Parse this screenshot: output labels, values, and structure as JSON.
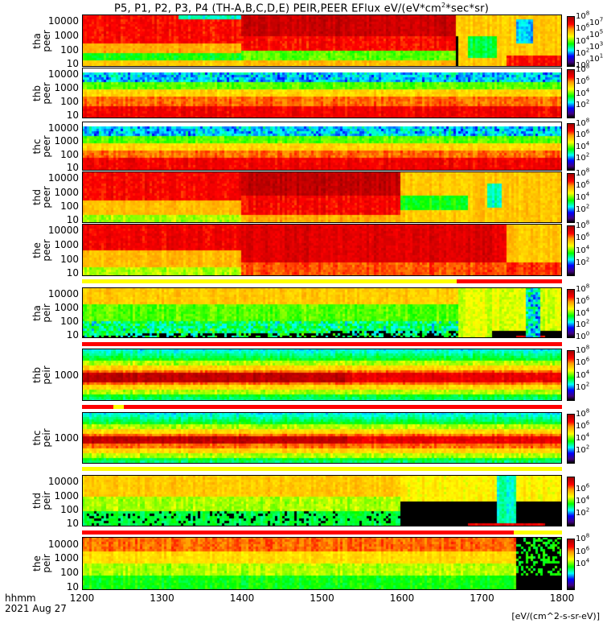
{
  "title": {
    "main": "P5, P1, P2, P3, P4 (TH-A,B,C,D,E) PEIR,PEER EFlux eV/(eV*cm",
    "sup": "2",
    "tail": "*sec*sr)"
  },
  "colorbar_unit": "[eV/(cm^2-s-sr-eV)]",
  "chart_data": {
    "type": "heatmap",
    "title": "P5, P1, P2, P3, P4 (TH-A,B,C,D,E) PEIR,PEER EFlux eV/(eV*cm^2*sec*sr)",
    "xlabel": [
      "hhmm",
      "2021 Aug 27"
    ],
    "xlim": [
      1200,
      1800
    ],
    "xticks": [
      "1200",
      "1300",
      "1400",
      "1500",
      "1600",
      "1700",
      "1800"
    ],
    "ylabel_units": "eV",
    "zlabel": "[eV/(cm^2-s-sr-eV)]",
    "panels": [
      {
        "id": "tha_peer",
        "label": [
          "tha",
          "peer"
        ],
        "yticks": [
          "10000",
          "1000",
          "100",
          "10"
        ],
        "ylim": [
          6,
          30000
        ],
        "zticks_exp": [
          "8",
          "7",
          "6",
          "5",
          "4",
          "3",
          "2",
          "1",
          "0"
        ],
        "zlim_exp": [
          0,
          8
        ]
      },
      {
        "id": "thb_peer",
        "label": [
          "thb",
          "peer"
        ],
        "yticks": [
          "10000",
          "1000",
          "100",
          "10"
        ],
        "ylim": [
          6,
          30000
        ],
        "zticks_exp": [
          "8",
          "6",
          "4",
          "2"
        ],
        "zlim_exp": [
          0,
          8
        ]
      },
      {
        "id": "thc_peer",
        "label": [
          "thc",
          "peer"
        ],
        "yticks": [
          "10000",
          "1000",
          "100",
          "10"
        ],
        "ylim": [
          6,
          30000
        ],
        "zticks_exp": [
          "8",
          "6",
          "4",
          "2"
        ],
        "zlim_exp": [
          0,
          8
        ]
      },
      {
        "id": "thd_peer",
        "label": [
          "thd",
          "peer"
        ],
        "yticks": [
          "10000",
          "1000",
          "100",
          "10"
        ],
        "ylim": [
          6,
          30000
        ],
        "zticks_exp": [
          "8",
          "6",
          "4",
          "2"
        ],
        "zlim_exp": [
          0,
          8
        ]
      },
      {
        "id": "the_peer",
        "label": [
          "the",
          "peer"
        ],
        "yticks": [
          "10000",
          "1000",
          "100",
          "10"
        ],
        "ylim": [
          6,
          30000
        ],
        "zticks_exp": [
          "8",
          "6",
          "4",
          "2"
        ],
        "zlim_exp": [
          0,
          8
        ]
      },
      {
        "id": "tha_peir",
        "label": [
          "tha",
          "peir"
        ],
        "yticks": [
          "10000",
          "1000",
          "100",
          "10"
        ],
        "ylim": [
          6,
          30000
        ],
        "zticks_exp": [
          "8",
          "6",
          "4",
          "2",
          "0"
        ],
        "zlim_exp": [
          0,
          8
        ]
      },
      {
        "id": "thb_peir",
        "label": [
          "thb",
          "peir"
        ],
        "yticks": [
          "1000"
        ],
        "ylim": [
          100,
          10000
        ],
        "zticks_exp": [
          "8",
          "6",
          "4",
          "2"
        ],
        "zlim_exp": [
          0,
          8
        ]
      },
      {
        "id": "thc_peir",
        "label": [
          "thc",
          "peir"
        ],
        "yticks": [
          "1000"
        ],
        "ylim": [
          100,
          10000
        ],
        "zticks_exp": [
          "8",
          "6",
          "4",
          "2"
        ],
        "zlim_exp": [
          0,
          8
        ]
      },
      {
        "id": "thd_peir",
        "label": [
          "thd",
          "peir"
        ],
        "yticks": [
          "10000",
          "1000",
          "100",
          "10"
        ],
        "ylim": [
          6,
          30000
        ],
        "zticks_exp": [
          "6",
          "4",
          "2"
        ],
        "zlim_exp": [
          0,
          8
        ]
      },
      {
        "id": "the_peir",
        "label": [
          "the",
          "peir"
        ],
        "yticks": [
          "10000",
          "1000",
          "100",
          "10"
        ],
        "ylim": [
          6,
          30000
        ],
        "zticks_exp": [
          "8",
          "6",
          "4"
        ],
        "zlim_exp": [
          0,
          8
        ]
      }
    ],
    "colormap": [
      "#000000",
      "#400080",
      "#0000ff",
      "#00ffff",
      "#00ff00",
      "#ffff00",
      "#ff9900",
      "#ff0000",
      "#a00000"
    ],
    "flag_colors": {
      "yellow": "#ffff00",
      "red": "#ff0000"
    }
  }
}
